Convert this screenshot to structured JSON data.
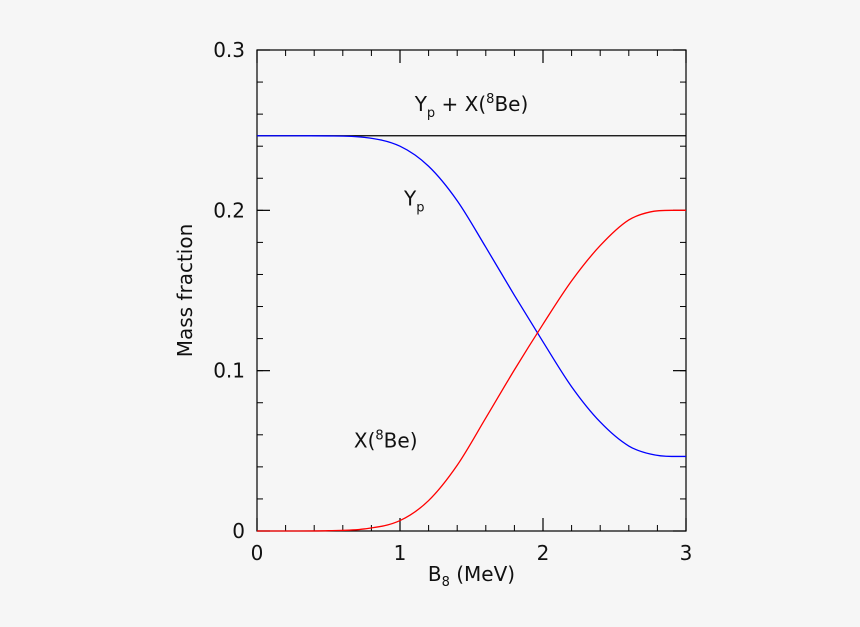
{
  "chart_data": {
    "type": "line",
    "title": "",
    "xlabel": {
      "main": "B",
      "sub": "8",
      "rest": " (MeV)"
    },
    "ylabel": "Mass fraction",
    "xlim": [
      0,
      3
    ],
    "ylim": [
      0,
      0.3
    ],
    "x_ticks": [
      0,
      1,
      2,
      3
    ],
    "x_tick_labels": [
      "0",
      "1",
      "2",
      "3"
    ],
    "y_ticks": [
      0,
      0.1,
      0.2,
      0.3
    ],
    "y_tick_labels": [
      "0",
      "0.1",
      "0.2",
      "0.3"
    ],
    "minor_x_step": 0.2,
    "minor_y_step": 0.02,
    "grid": false,
    "series": [
      {
        "name": "Yp + X(8Be)",
        "color": "#000000",
        "x": [
          0,
          0.5,
          1,
          1.5,
          2,
          2.5,
          3
        ],
        "y": [
          0.2465,
          0.2465,
          0.2465,
          0.2465,
          0.2465,
          0.2465,
          0.2465
        ]
      },
      {
        "name": "Yp",
        "color": "#0000ff",
        "x": [
          0,
          0.25,
          0.5,
          0.75,
          1.0,
          1.2,
          1.4,
          1.6,
          1.8,
          2.0,
          2.2,
          2.4,
          2.6,
          2.75,
          2.9,
          3.0
        ],
        "y": [
          0.2465,
          0.2465,
          0.2464,
          0.2455,
          0.24,
          0.2275,
          0.206,
          0.177,
          0.147,
          0.118,
          0.09,
          0.068,
          0.053,
          0.048,
          0.0465,
          0.0465
        ]
      },
      {
        "name": "X(8Be)",
        "color": "#ff0000",
        "x": [
          0,
          0.25,
          0.5,
          0.75,
          1.0,
          1.2,
          1.4,
          1.6,
          1.8,
          2.0,
          2.2,
          2.4,
          2.6,
          2.75,
          2.9,
          3.0
        ],
        "y": [
          0,
          0,
          0.0002,
          0.0013,
          0.0065,
          0.019,
          0.041,
          0.0705,
          0.1005,
          0.129,
          0.156,
          0.178,
          0.194,
          0.199,
          0.2,
          0.2
        ]
      }
    ],
    "annotations": [
      {
        "series": "Yp + X(8Be)",
        "parts": [
          {
            "t": "Y",
            "role": "main"
          },
          {
            "t": "p",
            "role": "sub"
          },
          {
            "t": " + X(",
            "role": "main"
          },
          {
            "t": "8",
            "role": "sup"
          },
          {
            "t": "Be)",
            "role": "main"
          }
        ],
        "x": 1.5,
        "y": 0.262
      },
      {
        "series": "Yp",
        "parts": [
          {
            "t": "Y",
            "role": "main"
          },
          {
            "t": "p",
            "role": "sub"
          }
        ],
        "x": 1.1,
        "y": 0.203
      },
      {
        "series": "X(8Be)",
        "parts": [
          {
            "t": "X(",
            "role": "main"
          },
          {
            "t": "8",
            "role": "sup"
          },
          {
            "t": "Be)",
            "role": "main"
          }
        ],
        "x": 0.9,
        "y": 0.052
      }
    ]
  }
}
